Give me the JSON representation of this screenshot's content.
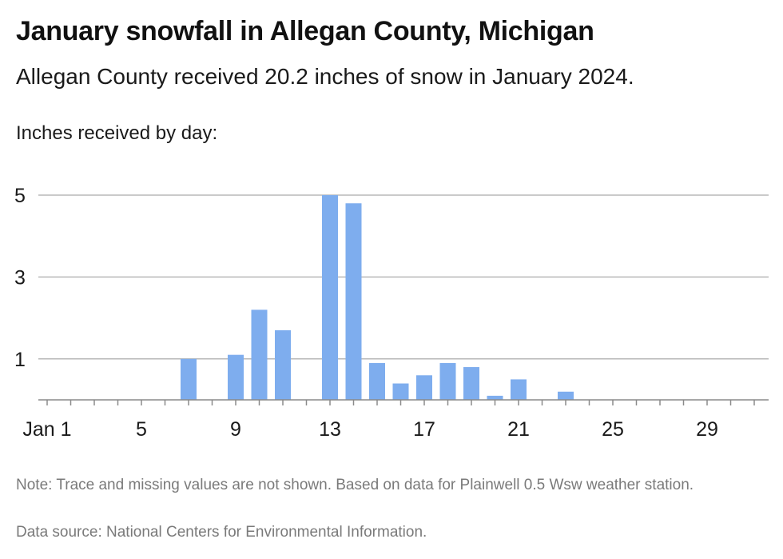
{
  "header": {
    "title": "January snowfall in Allegan County, Michigan",
    "subtitle": "Allegan County received 20.2 inches of snow in January 2024.",
    "axis_caption": "Inches received by day:"
  },
  "footer": {
    "note": "Note: Trace and missing values are not shown. Based on data for Plainwell 0.5 Wsw weather station.",
    "source": "Data source: National Centers for Environmental Information."
  },
  "chart_data": {
    "type": "bar",
    "title": "January snowfall in Allegan County, Michigan",
    "subtitle": "Allegan County received 20.2 inches of snow in January 2024.",
    "ylabel": "Inches received by day:",
    "xlabel": "",
    "categories": [
      1,
      2,
      3,
      4,
      5,
      6,
      7,
      8,
      9,
      10,
      11,
      12,
      13,
      14,
      15,
      16,
      17,
      18,
      19,
      20,
      21,
      22,
      23,
      24,
      25,
      26,
      27,
      28,
      29,
      30,
      31
    ],
    "values": [
      0,
      0,
      0,
      0,
      0,
      0,
      1.0,
      0,
      1.1,
      2.2,
      1.7,
      0,
      5.0,
      4.8,
      0.9,
      0.4,
      0.6,
      0.9,
      0.8,
      0.1,
      0.5,
      0,
      0.2,
      0,
      0,
      0,
      0,
      0,
      0,
      0,
      0
    ],
    "x_tick_labels": [
      {
        "day": 1,
        "label": "Jan 1"
      },
      {
        "day": 5,
        "label": "5"
      },
      {
        "day": 9,
        "label": "9"
      },
      {
        "day": 13,
        "label": "13"
      },
      {
        "day": 17,
        "label": "17"
      },
      {
        "day": 21,
        "label": "21"
      },
      {
        "day": 25,
        "label": "25"
      },
      {
        "day": 29,
        "label": "29"
      }
    ],
    "y_ticks": [
      {
        "value": 1,
        "label": "1"
      },
      {
        "value": 3,
        "label": "3"
      },
      {
        "value": 5,
        "label": "5"
      }
    ],
    "ylim": [
      0,
      5
    ],
    "xlim": [
      1,
      31
    ],
    "grid": true,
    "bar_color": "#7eadee",
    "grid_color": "#b8b8b8",
    "axis_color": "#8a8a8a"
  }
}
